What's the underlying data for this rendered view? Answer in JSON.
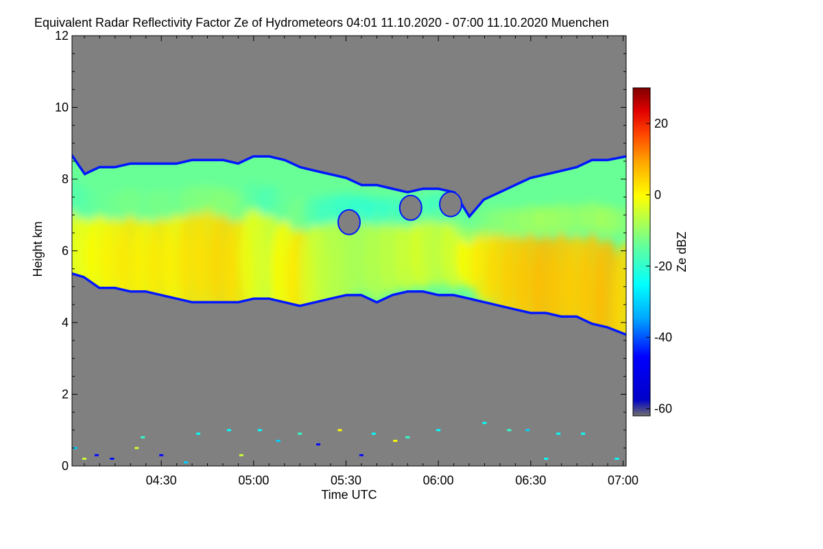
{
  "chart_data": {
    "type": "heatmap",
    "title": "Equivalent Radar Reflectivity Factor Ze of Hydrometeors   04:01 11.10.2020 - 07:00 11.10.2020 Muenchen",
    "xlabel": "Time UTC",
    "ylabel": "Height km",
    "colorbar_label": "Ze dBZ",
    "x_unit": "minutes UTC",
    "xlim": [
      241,
      421
    ],
    "ylim": [
      0,
      12
    ],
    "colorbar_range": [
      -62,
      30
    ],
    "x_ticks": [
      {
        "value": 270,
        "label": "04:30"
      },
      {
        "value": 300,
        "label": "05:00"
      },
      {
        "value": 330,
        "label": "05:30"
      },
      {
        "value": 360,
        "label": "06:00"
      },
      {
        "value": 390,
        "label": "06:30"
      },
      {
        "value": 420,
        "label": "07:00"
      }
    ],
    "y_ticks": [
      {
        "value": 0,
        "label": "0"
      },
      {
        "value": 2,
        "label": "2"
      },
      {
        "value": 4,
        "label": "4"
      },
      {
        "value": 6,
        "label": "6"
      },
      {
        "value": 8,
        "label": "8"
      },
      {
        "value": 10,
        "label": "10"
      },
      {
        "value": 12,
        "label": "12"
      }
    ],
    "colorbar_ticks": [
      {
        "value": -60,
        "label": "-60"
      },
      {
        "value": -40,
        "label": "-40"
      },
      {
        "value": -20,
        "label": "-20"
      },
      {
        "value": 0,
        "label": "0"
      },
      {
        "value": 20,
        "label": "20"
      }
    ],
    "background_color": "#808080",
    "colormap": [
      "#6e6e6e",
      "#0000c8",
      "#0000ff",
      "#00aaff",
      "#00ffff",
      "#66ff99",
      "#ffff00",
      "#ffaa00",
      "#ff4400",
      "#e00000",
      "#800000"
    ],
    "cloud_layer": {
      "time": [
        241,
        245,
        250,
        255,
        260,
        265,
        270,
        275,
        280,
        285,
        290,
        295,
        300,
        305,
        310,
        315,
        320,
        325,
        330,
        335,
        340,
        345,
        350,
        355,
        360,
        365,
        370,
        375,
        380,
        385,
        390,
        395,
        400,
        405,
        410,
        415,
        421
      ],
      "top_km": [
        8.6,
        8.1,
        8.3,
        8.3,
        8.4,
        8.4,
        8.4,
        8.4,
        8.5,
        8.5,
        8.5,
        8.4,
        8.6,
        8.6,
        8.5,
        8.3,
        8.2,
        8.1,
        8.0,
        7.8,
        7.8,
        7.7,
        7.6,
        7.7,
        7.7,
        7.6,
        6.9,
        7.4,
        7.6,
        7.8,
        8.0,
        8.1,
        8.2,
        8.3,
        8.5,
        8.5,
        8.6
      ],
      "base_km": [
        5.4,
        5.3,
        5.0,
        5.0,
        4.9,
        4.9,
        4.8,
        4.7,
        4.6,
        4.6,
        4.6,
        4.6,
        4.7,
        4.7,
        4.6,
        4.5,
        4.6,
        4.7,
        4.8,
        4.8,
        4.6,
        4.8,
        4.9,
        4.9,
        4.8,
        4.8,
        4.7,
        4.6,
        4.5,
        4.4,
        4.3,
        4.3,
        4.2,
        4.2,
        4.0,
        3.9,
        3.7
      ],
      "core_height_km": [
        5.9,
        5.9,
        5.8,
        5.7,
        5.7,
        5.6,
        5.6,
        5.7,
        5.7,
        5.8,
        5.6,
        5.5,
        5.8,
        5.6,
        5.4,
        5.2,
        5.4,
        5.6,
        5.8,
        5.9,
        5.8,
        5.9,
        5.9,
        6.0,
        6.1,
        6.0,
        5.8,
        5.6,
        5.4,
        5.2,
        5.1,
        5.0,
        5.0,
        4.9,
        4.8,
        4.6,
        4.4
      ],
      "core_ze_dbz": [
        -3,
        -2,
        0,
        1,
        2,
        1,
        2,
        1,
        3,
        3,
        4,
        3,
        -2,
        -4,
        0,
        2,
        -4,
        -6,
        -7,
        -8,
        -7,
        -6,
        -5,
        -4,
        -6,
        -4,
        0,
        2,
        4,
        5,
        6,
        7,
        6,
        5,
        6,
        7,
        4
      ]
    },
    "clear_gaps": [
      {
        "time": 351,
        "height_km": 7.2,
        "ze_dbz": -62
      },
      {
        "time": 364,
        "height_km": 7.3,
        "ze_dbz": -62
      },
      {
        "time": 331,
        "height_km": 6.8,
        "ze_dbz": -62
      }
    ],
    "low_echoes": [
      {
        "time": 242,
        "height_km": 0.5,
        "ze_dbz": -30
      },
      {
        "time": 245,
        "height_km": 0.2,
        "ze_dbz": -5
      },
      {
        "time": 249,
        "height_km": 0.3,
        "ze_dbz": -45
      },
      {
        "time": 254,
        "height_km": 0.2,
        "ze_dbz": -45
      },
      {
        "time": 262,
        "height_km": 0.5,
        "ze_dbz": -5
      },
      {
        "time": 264,
        "height_km": 0.8,
        "ze_dbz": -20
      },
      {
        "time": 270,
        "height_km": 0.3,
        "ze_dbz": -45
      },
      {
        "time": 278,
        "height_km": 0.1,
        "ze_dbz": -30
      },
      {
        "time": 282,
        "height_km": 0.9,
        "ze_dbz": -25
      },
      {
        "time": 292,
        "height_km": 1.0,
        "ze_dbz": -25
      },
      {
        "time": 296,
        "height_km": 0.3,
        "ze_dbz": -5
      },
      {
        "time": 302,
        "height_km": 1.0,
        "ze_dbz": -25
      },
      {
        "time": 308,
        "height_km": 0.7,
        "ze_dbz": -30
      },
      {
        "time": 315,
        "height_km": 0.9,
        "ze_dbz": -20
      },
      {
        "time": 321,
        "height_km": 0.6,
        "ze_dbz": -45
      },
      {
        "time": 328,
        "height_km": 1.0,
        "ze_dbz": 0
      },
      {
        "time": 335,
        "height_km": 0.3,
        "ze_dbz": -45
      },
      {
        "time": 339,
        "height_km": 0.9,
        "ze_dbz": -25
      },
      {
        "time": 346,
        "height_km": 0.7,
        "ze_dbz": 0
      },
      {
        "time": 350,
        "height_km": 0.8,
        "ze_dbz": -20
      },
      {
        "time": 360,
        "height_km": 1.0,
        "ze_dbz": -25
      },
      {
        "time": 375,
        "height_km": 1.2,
        "ze_dbz": -25
      },
      {
        "time": 383,
        "height_km": 1.0,
        "ze_dbz": -20
      },
      {
        "time": 389,
        "height_km": 1.0,
        "ze_dbz": -30
      },
      {
        "time": 395,
        "height_km": 0.2,
        "ze_dbz": -25
      },
      {
        "time": 399,
        "height_km": 0.9,
        "ze_dbz": -25
      },
      {
        "time": 407,
        "height_km": 0.9,
        "ze_dbz": -25
      },
      {
        "time": 418,
        "height_km": 0.2,
        "ze_dbz": -25
      }
    ]
  }
}
